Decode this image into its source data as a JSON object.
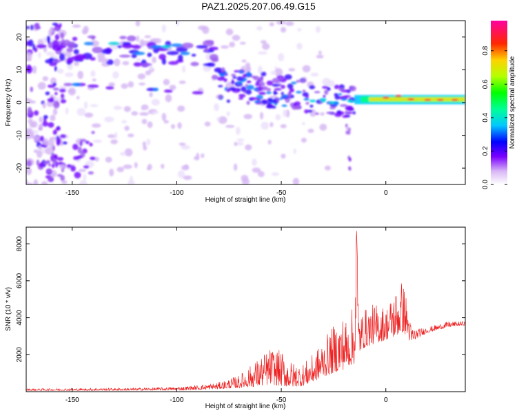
{
  "title": "PAZ1.2025.207.06.49.G15",
  "chart_data": [
    {
      "type": "heatmap",
      "xlabel": "Height of straight line (km)",
      "ylabel": "Frequency (Hz)",
      "xlim": [
        -172,
        38
      ],
      "ylim": [
        -25,
        25
      ],
      "xticks": [
        -150,
        -100,
        -50,
        0
      ],
      "yticks": [
        -20,
        -10,
        0,
        10,
        20
      ],
      "colorbar": {
        "label": "Normalized spectral amplitude",
        "range": [
          0,
          0.98
        ],
        "ticks": [
          "0.0",
          "0.2",
          "0.4",
          "0.6",
          "0.8"
        ]
      },
      "features": [
        {
          "x": [
            -170,
            -80
          ],
          "y": 18,
          "amplitude": 0.3
        },
        {
          "x": [
            -150,
            -145
          ],
          "y": 5.5,
          "amplitude": 0.35
        },
        {
          "x": [
            -80,
            -15
          ],
          "y": [
            5,
            0
          ],
          "amplitude": 0.25
        },
        {
          "x": [
            -15,
            38
          ],
          "y": 1,
          "amplitude": 0.9
        }
      ]
    },
    {
      "type": "line",
      "xlabel": "Height of straight line (km)",
      "ylabel": "SNR (10 * v/v)",
      "xlim": [
        -172,
        38
      ],
      "ylim": [
        0,
        8900
      ],
      "xticks": [
        -150,
        -100,
        -50,
        0
      ],
      "yticks": [
        2000,
        4000,
        6000,
        8000
      ],
      "color": "#ee2222",
      "envelope": {
        "x": [
          -172,
          -150,
          -120,
          -100,
          -90,
          -80,
          -70,
          -60,
          -55,
          -50,
          -45,
          -40,
          -35,
          -30,
          -25,
          -20,
          -18,
          -15,
          -14,
          -13,
          -12,
          -10,
          -5,
          0,
          5,
          8,
          10,
          12,
          15,
          20,
          30,
          38
        ],
        "lo": [
          60,
          60,
          70,
          80,
          100,
          150,
          200,
          300,
          400,
          300,
          250,
          300,
          500,
          800,
          1000,
          1200,
          1400,
          1500,
          1600,
          2000,
          2200,
          2400,
          2600,
          2800,
          3000,
          3200,
          3000,
          2600,
          2900,
          3200,
          3500,
          3600
        ],
        "hi": [
          160,
          180,
          200,
          260,
          350,
          500,
          900,
          1900,
          2400,
          2200,
          1600,
          1500,
          2000,
          2800,
          3600,
          4200,
          3800,
          5000,
          8800,
          4500,
          4200,
          4500,
          4800,
          4600,
          5600,
          6100,
          5100,
          3600,
          3400,
          3500,
          3800,
          3800
        ]
      }
    }
  ]
}
